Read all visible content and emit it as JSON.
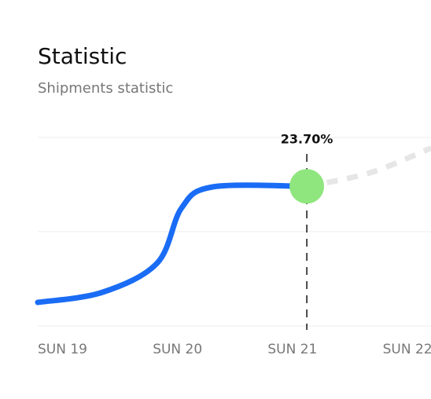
{
  "chart_data": {
    "type": "line",
    "title": "Statistic",
    "subtitle": "Shipments statistic",
    "categories": [
      "SUN 19",
      "SUN 20",
      "SUN 21",
      "SUN 22"
    ],
    "xlim": [
      0,
      3.42
    ],
    "ylim": [
      0,
      32
    ],
    "yticks": [
      0,
      16,
      32
    ],
    "grid": true,
    "series": [
      {
        "color": "#1a6cf5",
        "x": [
          0,
          0.56,
          1.04,
          1.25,
          1.52,
          2.34
        ],
        "values": [
          4.0,
          5.7,
          10.7,
          20.0,
          23.6,
          23.7
        ],
        "value_labels": [
          null,
          null,
          null,
          null,
          null,
          "23.70%"
        ],
        "highlight_color": "#8fe67e"
      },
      {
        "color": "#e6e6e6",
        "dashed": true,
        "x": [
          2.34,
          2.89,
          3.42
        ],
        "values": [
          23.7,
          26.0,
          30.2
        ]
      }
    ]
  }
}
